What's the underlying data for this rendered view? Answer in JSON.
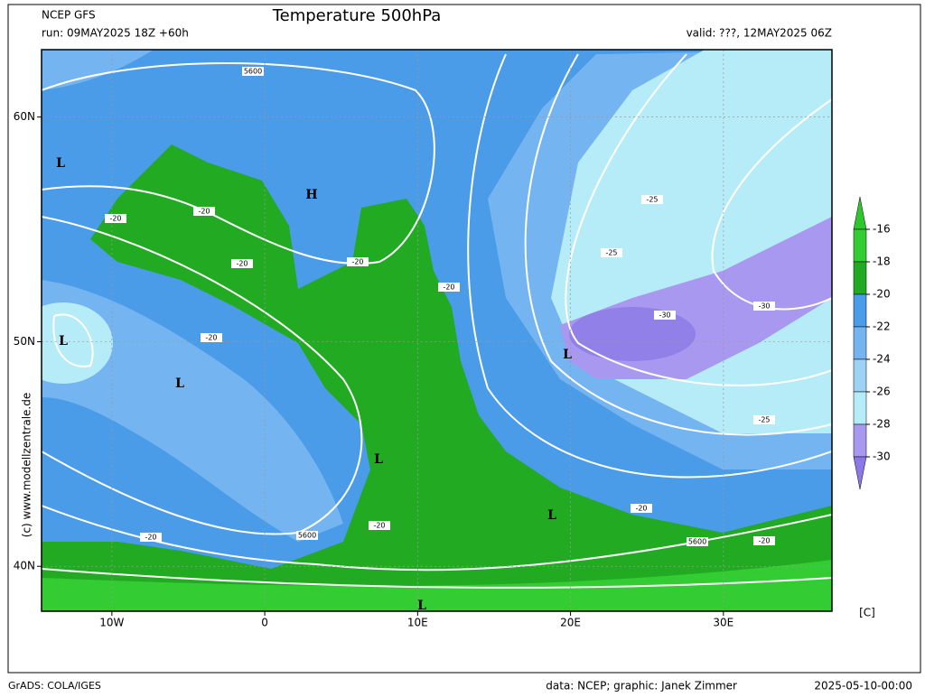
{
  "header": {
    "model": "NCEP GFS",
    "title": "Temperature 500hPa",
    "run": "run: 09MAY2025 18Z +60h",
    "valid": "valid: ???, 12MAY2025 06Z"
  },
  "map": {
    "lonlim": [
      -14.6,
      37.1
    ],
    "latlim": [
      38,
      63
    ],
    "lonticks": [
      {
        "value": -10,
        "label": "10W"
      },
      0,
      {
        "value": 10,
        "label": "10E"
      },
      {
        "value": 20,
        "label": "20E"
      },
      {
        "value": 30,
        "label": "30E"
      }
    ],
    "latticks": [
      {
        "value": 60,
        "label": "60N"
      },
      {
        "value": 50,
        "label": "50N"
      },
      {
        "value": 40,
        "label": "40N"
      }
    ],
    "grid": true,
    "centers": [
      "L",
      "H",
      "L",
      "L",
      "L",
      "L",
      "L",
      "L"
    ],
    "contour_labels": [
      5600,
      -20,
      -20,
      -20,
      -20,
      -20,
      -20,
      -25,
      -25,
      -30,
      -30,
      -25,
      -20,
      -20,
      5600,
      5600,
      -20,
      -20
    ]
  },
  "colorbar": {
    "ticks": [
      -16,
      -18,
      -20,
      -22,
      -24,
      -26,
      -28,
      -30
    ],
    "colors": [
      "#2ec82e",
      "#33cc33",
      "#22aa22",
      "#4a9be8",
      "#74b4f0",
      "#9ed2f5",
      "#b6ecf8",
      "#a898f0",
      "#8c78e6"
    ],
    "unit": "[C]"
  },
  "credit": "(c) www.modellzentrale.de",
  "footer": {
    "left": "GrADS: COLA/IGES",
    "center": "data: NCEP; graphic: Janek Zimmer",
    "right": "2025-05-10-00:00"
  }
}
